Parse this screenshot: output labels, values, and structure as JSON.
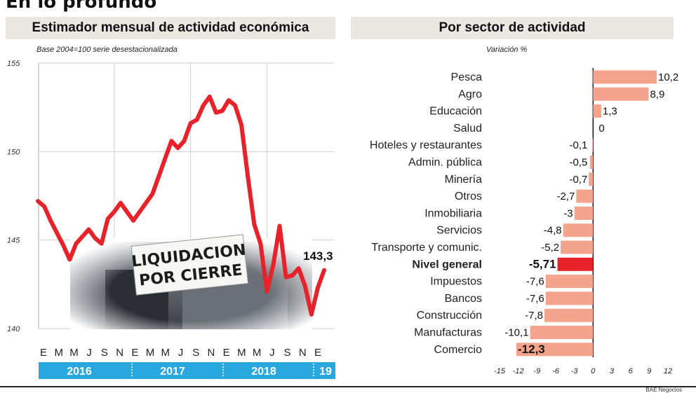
{
  "page_title": "En lo profundo",
  "credit": "BAE Negocios",
  "chart_data": [
    {
      "type": "line",
      "title": "Estimador mensual de actividad económica",
      "subtitle": "Base 2004=100 serie desestacionalizada",
      "ylim": [
        140,
        155
      ],
      "yticks": [
        140,
        145,
        150,
        155
      ],
      "x_month_labels": [
        "E",
        "M",
        "M",
        "J",
        "S",
        "N",
        "E",
        "M",
        "M",
        "J",
        "S",
        "N",
        "E",
        "M",
        "M",
        "J",
        "S",
        "N",
        "E"
      ],
      "year_labels": [
        "2016",
        "2017",
        "2018",
        "19"
      ],
      "series": [
        {
          "color": "#e8222a",
          "values": [
            147.2,
            146.9,
            146.1,
            145.4,
            144.7,
            143.9,
            144.8,
            145.2,
            145.6,
            145.1,
            144.8,
            146.2,
            146.6,
            147.1,
            146.6,
            146.1,
            146.6,
            147.1,
            147.6,
            148.6,
            149.6,
            150.6,
            150.2,
            150.6,
            151.6,
            151.8,
            152.6,
            153.1,
            152.2,
            152.3,
            152.9,
            152.6,
            151.5,
            148.6,
            145.9,
            144.8,
            142.1,
            143.6,
            145.8,
            142.9,
            143.0,
            143.4,
            142.4,
            140.8,
            142.3,
            143.3
          ]
        }
      ],
      "end_label": "143,3",
      "photo_sign_lines": [
        "LIQUIDACION",
        "POR CIERRE"
      ]
    },
    {
      "type": "bar",
      "orientation": "horizontal",
      "title": "Por sector de actividad",
      "subtitle": "Variación %",
      "xlim": [
        -15,
        12
      ],
      "xticks": [
        -15,
        -12,
        -9,
        -6,
        -3,
        0,
        3,
        6,
        9,
        12
      ],
      "bar_color": "#f4a48c",
      "highlight_color": "#e8222a",
      "categories": [
        "Pesca",
        "Agro",
        "Educación",
        "Salud",
        "Hoteles y restaurantes",
        "Admin. pública",
        "Minería",
        "Otros",
        "Inmobiliaria",
        "Servicios",
        "Transporte y comunic.",
        "Nivel general",
        "Impuestos",
        "Bancos",
        "Construcción",
        "Manufacturas",
        "Comercio"
      ],
      "values": [
        10.2,
        8.9,
        1.3,
        0,
        -0.1,
        -0.5,
        -0.7,
        -2.7,
        -3,
        -4.8,
        -5.2,
        -5.71,
        -7.6,
        -7.6,
        -7.8,
        -10.1,
        -12.3
      ],
      "value_labels": [
        "10,2",
        "8,9",
        "1,3",
        "0",
        "-0,1",
        "-0,5",
        "-0,7",
        "-2,7",
        "-3",
        "-4,8",
        "-5,2",
        "-5,71",
        "-7,6",
        "-7,6",
        "-7,8",
        "-10,1",
        "-12,3"
      ],
      "highlight": [
        "Nivel general"
      ],
      "bold_labels": [
        "Nivel general",
        "Comercio"
      ]
    }
  ]
}
